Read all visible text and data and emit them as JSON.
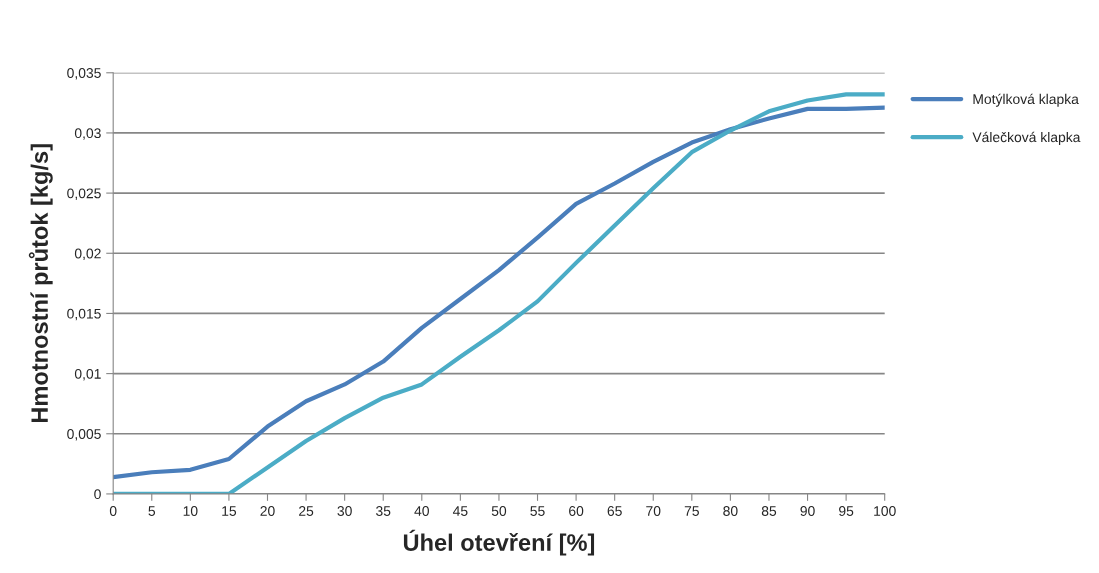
{
  "chart_data": {
    "type": "line",
    "xlabel": "Úhel otevření [%]",
    "ylabel": "Hmotnostní průtok [kg/s]",
    "x": [
      0,
      5,
      10,
      15,
      20,
      25,
      30,
      35,
      40,
      45,
      50,
      55,
      60,
      65,
      70,
      75,
      80,
      85,
      90,
      95,
      100
    ],
    "series": [
      {
        "name": "Motýlková klapka",
        "color": "#4a7ebb",
        "values": [
          0.0014,
          0.0018,
          0.002,
          0.0029,
          0.0056,
          0.0077,
          0.0091,
          0.011,
          0.0138,
          0.0162,
          0.0186,
          0.0213,
          0.0241,
          0.0258,
          0.0276,
          0.0292,
          0.0303,
          0.0312,
          0.032,
          0.032,
          0.0321
        ]
      },
      {
        "name": "Válečková klapka",
        "color": "#4bacc6",
        "values": [
          0,
          0,
          0,
          0,
          0.0022,
          0.0044,
          0.0063,
          0.008,
          0.0091,
          0.0114,
          0.0136,
          0.016,
          0.0192,
          0.0223,
          0.0254,
          0.0284,
          0.0302,
          0.0318,
          0.0327,
          0.0332,
          0.0332
        ]
      }
    ],
    "xlim": [
      0,
      100
    ],
    "xticks": [
      0,
      5,
      10,
      15,
      20,
      25,
      30,
      35,
      40,
      45,
      50,
      55,
      60,
      65,
      70,
      75,
      80,
      85,
      90,
      95,
      100
    ],
    "ylim": [
      0,
      0.035
    ],
    "yticks": [
      0,
      {
        "value": 0.005,
        "label": "0,005"
      },
      {
        "value": 0.01,
        "label": "0,01"
      },
      {
        "value": 0.015,
        "label": "0,015"
      },
      {
        "value": 0.02,
        "label": "0,02"
      },
      {
        "value": 0.025,
        "label": "0,025"
      },
      {
        "value": 0.03,
        "label": "0,03"
      },
      {
        "value": 0.035,
        "label": "0,035"
      }
    ],
    "grid": "y",
    "legend": "right",
    "marker": "none",
    "line_style": "solid"
  }
}
